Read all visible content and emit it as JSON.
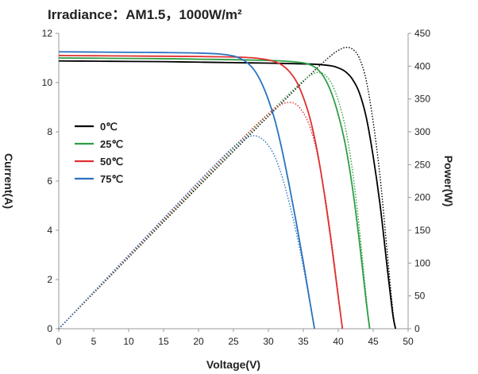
{
  "chart_data": {
    "type": "line",
    "title": "Irradiance：AM1.5，1000W/m²",
    "xlabel": "Voltage(V)",
    "ylabel_left": "Current(A)",
    "ylabel_right": "Power(W)",
    "xlim": [
      0,
      50
    ],
    "ylim_left": [
      0,
      12
    ],
    "ylim_right": [
      0,
      450
    ],
    "x_ticks": [
      "0",
      "5",
      "10",
      "15",
      "20",
      "25",
      "30",
      "35",
      "40",
      "45",
      "50"
    ],
    "y_left_ticks": [
      "0",
      "2",
      "4",
      "6",
      "8",
      "10",
      "12"
    ],
    "y_right_ticks": [
      "0",
      "50",
      "100",
      "150",
      "200",
      "250",
      "300",
      "350",
      "400",
      "450"
    ],
    "grid": false,
    "legend_position": "middle-left",
    "series": [
      {
        "name": "0℃",
        "color": "#000000",
        "current": {
          "x": [
            0,
            5,
            10,
            15,
            20,
            25,
            30,
            35,
            37,
            39,
            40,
            41,
            42,
            43,
            44,
            45,
            46,
            47,
            47.8,
            48.2
          ],
          "y": [
            10.88,
            10.87,
            10.86,
            10.85,
            10.83,
            10.81,
            10.79,
            10.76,
            10.74,
            10.68,
            10.6,
            10.45,
            10.15,
            9.6,
            8.6,
            7.0,
            5.0,
            2.5,
            0.6,
            0
          ]
        },
        "power": {
          "x": [
            0,
            5,
            10,
            15,
            20,
            25,
            30,
            35,
            37,
            39,
            40,
            41,
            42,
            43,
            44,
            45,
            46,
            47,
            47.8,
            48.2
          ],
          "y": [
            0,
            54.4,
            108.6,
            162.8,
            216.6,
            270.3,
            323.7,
            376.6,
            397.4,
            416.5,
            424,
            428.5,
            426.3,
            412.8,
            378.4,
            315,
            230,
            117.5,
            28.7,
            0
          ]
        }
      },
      {
        "name": "25℃",
        "color": "#2e9e45",
        "current": {
          "x": [
            0,
            5,
            10,
            15,
            20,
            25,
            30,
            33,
            35,
            36,
            37,
            38,
            39,
            40,
            41,
            42,
            43,
            44,
            44.5
          ],
          "y": [
            11.0,
            10.99,
            10.98,
            10.97,
            10.95,
            10.93,
            10.9,
            10.86,
            10.8,
            10.72,
            10.55,
            10.2,
            9.6,
            8.7,
            7.5,
            5.8,
            3.6,
            1.1,
            0
          ]
        },
        "power": {
          "x": [
            0,
            5,
            10,
            15,
            20,
            25,
            30,
            33,
            35,
            36,
            37,
            38,
            39,
            40,
            41,
            42,
            43,
            44,
            44.5
          ],
          "y": [
            0,
            55,
            109.8,
            164.6,
            219,
            273.3,
            327,
            358.4,
            378,
            385.9,
            390.4,
            387.6,
            374.4,
            348,
            307.5,
            243.6,
            154.8,
            48.4,
            0
          ]
        }
      },
      {
        "name": "50℃",
        "color": "#e03030",
        "current": {
          "x": [
            0,
            5,
            10,
            15,
            20,
            25,
            28,
            30,
            31,
            32,
            33,
            34,
            35,
            36,
            37,
            38,
            39,
            40,
            40.6
          ],
          "y": [
            11.1,
            11.09,
            11.08,
            11.07,
            11.06,
            11.04,
            11.0,
            10.92,
            10.84,
            10.7,
            10.45,
            10.05,
            9.4,
            8.5,
            7.2,
            5.5,
            3.5,
            1.3,
            0
          ]
        },
        "power": {
          "x": [
            0,
            5,
            10,
            15,
            20,
            25,
            28,
            30,
            31,
            32,
            33,
            34,
            35,
            36,
            37,
            38,
            39,
            40,
            40.6
          ],
          "y": [
            0,
            55.5,
            110.8,
            166.1,
            221.2,
            276,
            308,
            327.6,
            336,
            342.4,
            344.9,
            341.7,
            329,
            306,
            266.4,
            209,
            136.5,
            52,
            0
          ]
        }
      },
      {
        "name": "75℃",
        "color": "#2a72c0",
        "current": {
          "x": [
            0,
            5,
            10,
            15,
            20,
            23,
            25,
            26,
            27,
            28,
            29,
            30,
            31,
            32,
            33,
            34,
            35,
            36,
            36.6
          ],
          "y": [
            11.25,
            11.24,
            11.23,
            11.22,
            11.2,
            11.16,
            11.08,
            10.98,
            10.8,
            10.5,
            10.0,
            9.3,
            8.4,
            7.2,
            5.8,
            4.3,
            2.7,
            1.0,
            0
          ]
        },
        "power": {
          "x": [
            0,
            5,
            10,
            15,
            20,
            23,
            25,
            26,
            27,
            28,
            29,
            30,
            31,
            32,
            33,
            34,
            35,
            36,
            36.6
          ],
          "y": [
            0,
            56.2,
            112.3,
            168.3,
            224,
            256.7,
            277,
            285.5,
            291.6,
            294,
            290,
            279,
            260.4,
            230.4,
            191.4,
            146.2,
            94.5,
            36,
            0
          ]
        }
      }
    ]
  }
}
